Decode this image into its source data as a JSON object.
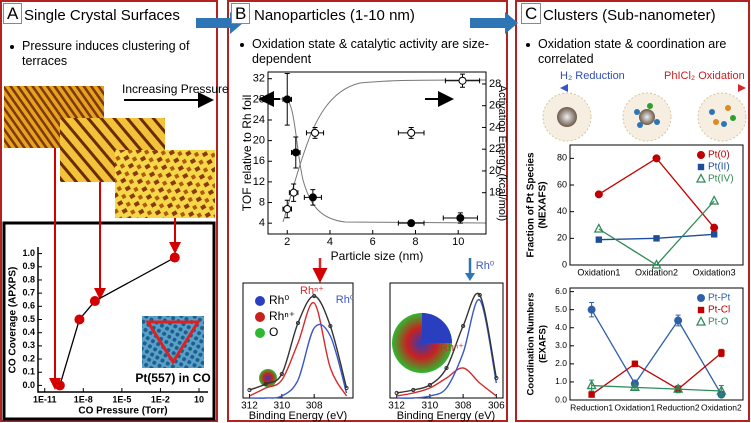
{
  "panels": [
    {
      "label": "A",
      "title": "Single Crystal Surfaces",
      "bullets": [
        "Pressure induces clustering of terraces"
      ],
      "notes": [
        "Increasing Pressure"
      ]
    },
    {
      "label": "B",
      "title": "Nanoparticles (1-10 nm)",
      "bullets": [
        "Oxidation state & catalytic activity are size-dependent"
      ],
      "legend": [
        {
          "label": "Rh⁰",
          "color": "#2a3fbf"
        },
        {
          "label": "Rhⁿ⁺",
          "color": "#c8201f"
        },
        {
          "label": "O",
          "color": "#2fb82f"
        }
      ]
    },
    {
      "label": "C",
      "title": "Clusters (Sub-nanometer)",
      "bullets": [
        "Oxidation state & coordination are correlated"
      ],
      "notes": [
        "H₂ Reduction",
        "PhICl₂ Oxidation"
      ]
    }
  ],
  "chart_data": [
    {
      "type": "line",
      "x_label": "CO Pressure (Torr)",
      "y_label": "CO Coverage (APXPS)",
      "xscale": "log",
      "x": [
        1.5e-10,
        5e-09,
        8e-08,
        0.13
      ],
      "values": [
        0.0,
        0.5,
        0.64,
        0.97
      ],
      "color": "#d40000",
      "line_color": "#000000",
      "marker": "circle",
      "xlim": [
        3e-12,
        50
      ],
      "xticks": [
        {
          "value": 1e-11,
          "label": "1E-11"
        },
        {
          "value": 1e-08,
          "label": "1E-8"
        },
        {
          "value": 1e-05,
          "label": "1E-5"
        },
        {
          "value": 0.01,
          "label": "1E-2"
        },
        10
      ],
      "ylim": [
        -0.05,
        1.05
      ],
      "yticks": [
        {
          "value": 0,
          "label": "0.0"
        },
        0.1,
        0.2,
        0.3,
        0.4,
        0.5,
        0.6,
        0.7,
        0.8,
        0.9,
        {
          "value": 1,
          "label": "1.0"
        }
      ],
      "annotations": [
        {
          "text": "Pt(557) in CO",
          "color": "#000000"
        }
      ]
    },
    {
      "type": "scatter",
      "x_label": "Particle size (nm)",
      "y_label": "TOF relative to Rh foil",
      "y2_label": "Activation Energy (kcal/mol)",
      "xlim": [
        1.1,
        11.3
      ],
      "xticks": [
        2,
        4,
        6,
        8,
        10
      ],
      "ylim": [
        1.9,
        33.3
      ],
      "yticks": [
        4,
        8,
        12,
        16,
        20,
        24,
        28,
        32
      ],
      "y2lim": [
        14.2,
        29.1
      ],
      "y2ticks": [
        18,
        20,
        22,
        24,
        26,
        28
      ],
      "series": [
        {
          "color": "#000000",
          "marker": "circle",
          "x": [
            2.0,
            2.4,
            3.2,
            7.8,
            10.1
          ],
          "values": [
            28,
            17.7,
            9.0,
            4.0,
            5.0
          ],
          "xerr": [
            0.2,
            0.2,
            0.4,
            0.6,
            0.8
          ],
          "yerr": [
            5,
            3,
            1.5,
            0.5,
            1
          ]
        },
        {
          "color": "#000000",
          "marker": "circle-open",
          "axis": "y2",
          "x": [
            2.0,
            2.3,
            3.3,
            7.8,
            10.2
          ],
          "values": [
            16.5,
            18.0,
            23.5,
            23.5,
            28.3
          ],
          "xerr": [
            0.2,
            0.2,
            0.4,
            0.6,
            0.8
          ],
          "yerr": [
            0.8,
            0.8,
            0.5,
            0.5,
            0.6
          ]
        }
      ]
    },
    {
      "type": "line",
      "smooth": true,
      "x_label": "Binding Energy (eV)",
      "x": [
        312,
        311,
        310,
        309,
        308,
        307,
        306
      ],
      "xlim": [
        312.4,
        305.6
      ],
      "xticks": [
        312,
        310,
        308
      ],
      "ylim": [
        0,
        1.15
      ],
      "series": [
        {
          "color": "#d42a2a",
          "values": [
            0.02,
            0.1,
            0.18,
            0.55,
            0.95,
            0.3,
            0.02
          ]
        },
        {
          "color": "#3a56c5",
          "values": [
            0,
            0,
            0.02,
            0.18,
            0.7,
            0.62,
            0.05
          ]
        },
        {
          "color": "#333333",
          "marker": "dot",
          "values": [
            0.08,
            0.14,
            0.24,
            0.75,
            1.02,
            0.72,
            0.1
          ]
        }
      ],
      "annotations": [
        {
          "text": "Rhⁿ⁺",
          "color": "#d42a2a"
        },
        {
          "text": "Rh⁰",
          "color": "#3a56c5"
        }
      ]
    },
    {
      "type": "line",
      "smooth": true,
      "x_label": "Binding Energy (eV)",
      "x": [
        312,
        311,
        310,
        309,
        308,
        307,
        306
      ],
      "xlim": [
        312.4,
        305.6
      ],
      "xticks": [
        312,
        310,
        308,
        306
      ],
      "ylim": [
        0,
        1.15
      ],
      "series": [
        {
          "color": "#d42a2a",
          "values": [
            0.02,
            0.05,
            0.1,
            0.2,
            0.3,
            0.15,
            0.02
          ]
        },
        {
          "color": "#3a56c5",
          "values": [
            0,
            0,
            0.02,
            0.1,
            0.45,
            0.98,
            0.15
          ]
        },
        {
          "color": "#333333",
          "marker": "dot",
          "values": [
            0.05,
            0.08,
            0.13,
            0.3,
            0.72,
            1.03,
            0.2
          ]
        }
      ],
      "annotations": [
        {
          "text": "Rh⁰",
          "color": "#3a56c5"
        },
        {
          "text": "Rhⁿ⁺",
          "color": "#d42a2a"
        }
      ]
    },
    {
      "type": "line",
      "y_label": [
        "Fraction of Pt Species",
        "(NEXAFS)"
      ],
      "categories": [
        "Oxidation1",
        "Oxidation2",
        "Oxidation3"
      ],
      "ylim": [
        0,
        90
      ],
      "yticks": [
        0,
        20,
        40,
        60,
        80
      ],
      "legend": "upper right",
      "series": [
        {
          "name": "Pt(0)",
          "color": "#c00000",
          "marker": "circle",
          "values": [
            53,
            80,
            28
          ]
        },
        {
          "name": "Pt(II)",
          "color": "#1f4e99",
          "marker": "square",
          "values": [
            19,
            20,
            23
          ]
        },
        {
          "name": "Pt(IV)",
          "color": "#2e8b57",
          "marker": "triangle-open",
          "values": [
            27,
            0,
            48
          ]
        }
      ]
    },
    {
      "type": "line",
      "y_label": [
        "Coordination Numbers",
        "(EXAFS)"
      ],
      "categories": [
        "Reduction1",
        "Oxidation1",
        "Reduction2",
        "Oxidation2"
      ],
      "ylim": [
        0,
        6.2
      ],
      "yticks": [
        {
          "value": 0,
          "label": "0.0"
        },
        {
          "value": 1,
          "label": "1.0"
        },
        {
          "value": 2,
          "label": "2.0"
        },
        {
          "value": 3,
          "label": "3.0"
        },
        {
          "value": 4,
          "label": "4.0"
        },
        {
          "value": 5,
          "label": "5.0"
        },
        {
          "value": 6,
          "label": "6.0"
        }
      ],
      "legend": "upper right",
      "series": [
        {
          "name": "Pt-Pt",
          "color": "#2f5fa8",
          "marker": "circle",
          "values": [
            5.0,
            0.9,
            4.4,
            0.3
          ],
          "yerr": [
            0.4,
            0.2,
            0.3,
            0.1
          ]
        },
        {
          "name": "Pt-Cl",
          "color": "#c00000",
          "marker": "square",
          "values": [
            0.3,
            2.0,
            0.6,
            2.6
          ],
          "yerr": [
            0.1,
            0.15,
            0.15,
            0.2
          ]
        },
        {
          "name": "Pt-O",
          "color": "#2e8b57",
          "marker": "triangle-open",
          "values": [
            0.8,
            0.7,
            0.6,
            0.5
          ],
          "yerr": [
            0.3,
            0.1,
            0.2,
            0.3
          ]
        }
      ]
    }
  ]
}
